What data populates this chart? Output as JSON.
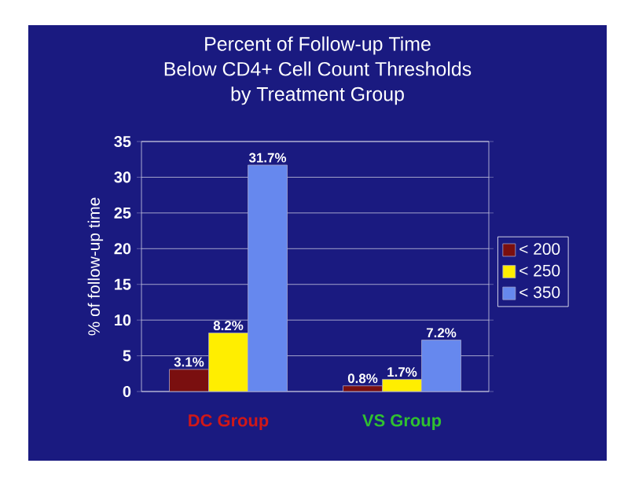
{
  "chart_data": {
    "type": "bar",
    "title": "Percent of Follow-up Time\nBelow CD4+ Cell Count Thresholds\nby Treatment Group",
    "ylabel": "% of follow-up time",
    "categories": [
      "DC Group",
      "VS Group"
    ],
    "series": [
      {
        "name": "< 200",
        "color": "#7a0f0f",
        "values": [
          3.1,
          0.8
        ],
        "value_labels": [
          "3.1%",
          "0.8%"
        ]
      },
      {
        "name": "< 250",
        "color": "#ffee00",
        "values": [
          8.2,
          1.7
        ],
        "value_labels": [
          "8.2%",
          "1.7%"
        ]
      },
      {
        "name": "< 350",
        "color": "#6688ee",
        "values": [
          31.7,
          7.2
        ],
        "value_labels": [
          "31.7%",
          "7.2%"
        ]
      }
    ],
    "ylim": [
      0,
      35
    ],
    "yticks": [
      0,
      5,
      10,
      15,
      20,
      25,
      30,
      35
    ],
    "grid": "y",
    "legend": "right"
  }
}
